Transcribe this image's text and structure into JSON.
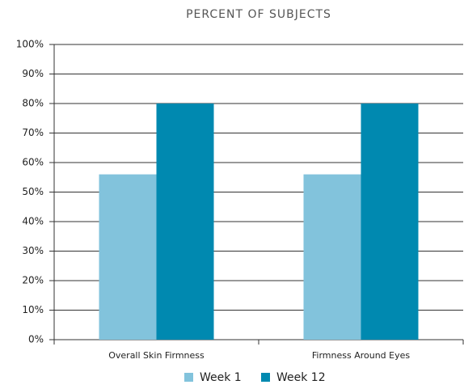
{
  "chart_data": {
    "type": "bar",
    "title": "PERCENT OF SUBJECTS",
    "categories": [
      "Overall Skin Firmness",
      "Firmness Around Eyes"
    ],
    "series": [
      {
        "name": "Week 1",
        "color": "#82c3dc",
        "values": [
          56,
          56
        ]
      },
      {
        "name": "Week 12",
        "color": "#0089b0",
        "values": [
          80,
          80
        ]
      }
    ],
    "ylim": [
      0,
      100
    ],
    "yticks": [
      {
        "value": 0,
        "label": "0%"
      },
      {
        "value": 10,
        "label": "10%"
      },
      {
        "value": 20,
        "label": "20%"
      },
      {
        "value": 30,
        "label": "30%"
      },
      {
        "value": 40,
        "label": "40%"
      },
      {
        "value": 50,
        "label": "50%"
      },
      {
        "value": 60,
        "label": "60%"
      },
      {
        "value": 70,
        "label": "70%"
      },
      {
        "value": 80,
        "label": "80%"
      },
      {
        "value": 90,
        "label": "90%"
      },
      {
        "value": 100,
        "label": "100%"
      }
    ],
    "grid": true,
    "legend": "bottom"
  }
}
